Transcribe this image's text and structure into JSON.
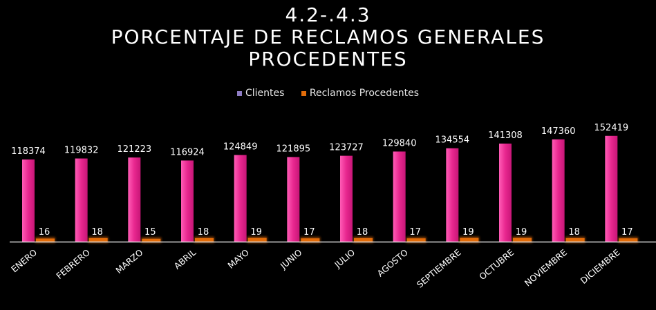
{
  "title": {
    "line1": "4.2-.4.3",
    "line2": "PORCENTAJE DE RECLAMOS GENERALES",
    "line3": "PROCEDENTES"
  },
  "legend": {
    "items": [
      {
        "label": "Clientes",
        "color": "#8e7cc3"
      },
      {
        "label": "Reclamos Procedentes",
        "color": "#e36c09"
      }
    ]
  },
  "chart_data": {
    "type": "bar",
    "title": "4.2-.4.3 PORCENTAJE DE RECLAMOS GENERALES PROCEDENTES",
    "categories": [
      "ENERO",
      "FEBRERO",
      "MARZO",
      "ABRIL",
      "MAYO",
      "JUNIO",
      "JULIO",
      "AGOSTO",
      "SEPTIEMBRE",
      "OCTUBRE",
      "NOVIEMBRE",
      "DICIEMBRE"
    ],
    "series": [
      {
        "name": "Clientes",
        "color": "#e8278f",
        "values": [
          118374,
          119832,
          121223,
          116924,
          124849,
          121895,
          123727,
          129840,
          134554,
          141308,
          147360,
          152419
        ]
      },
      {
        "name": "Reclamos Procedentes",
        "color": "#e36c09",
        "values": [
          16,
          18,
          15,
          18,
          19,
          17,
          18,
          17,
          19,
          19,
          18,
          17
        ]
      }
    ],
    "xlabel": "",
    "ylabel": "",
    "legend_position": "top",
    "grid": false
  }
}
